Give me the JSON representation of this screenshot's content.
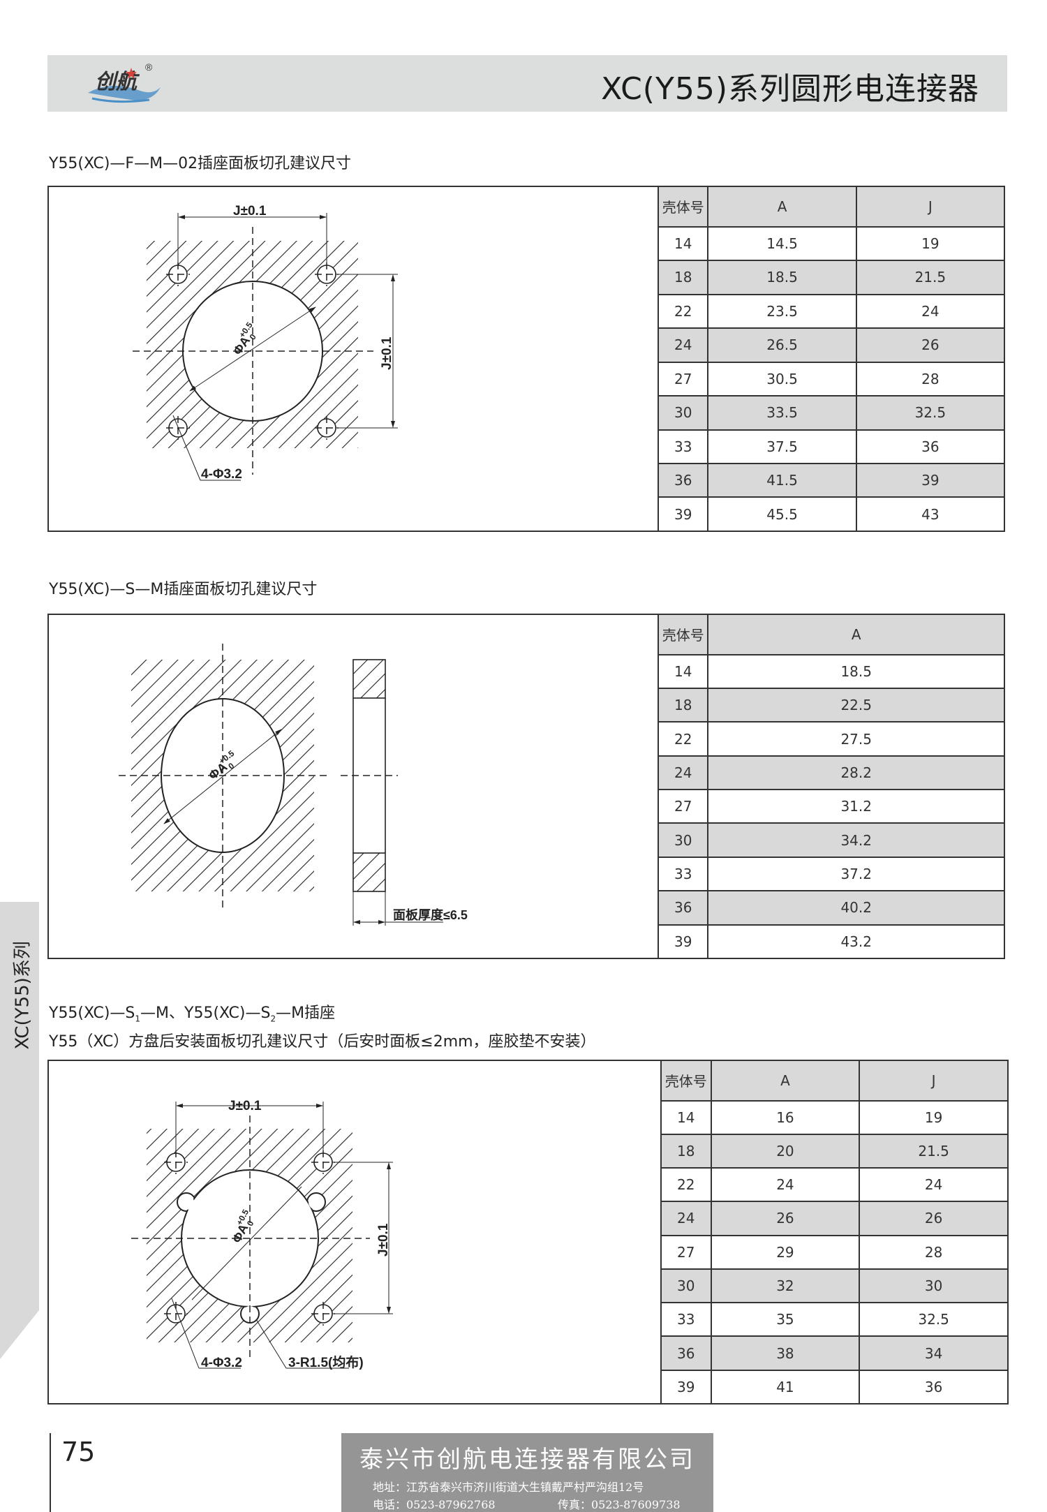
{
  "header": {
    "title": "XC(Y55)系列圆形电连接器",
    "logo_text": "创航",
    "logo_mark": "®"
  },
  "side_tab": {
    "label": "XC(Y55)系列"
  },
  "sections": [
    {
      "title": "Y55(XC)—F—M—02插座面板切孔建议尺寸",
      "drawing": {
        "dim_h": "J±0.1",
        "dim_v": "J±0.1",
        "diameter": "ΦA",
        "tol_upper": "+0.5",
        "tol_lower": "0",
        "holes": "4-Φ3.2"
      },
      "table": {
        "headers": [
          "壳体号",
          "A",
          "J"
        ],
        "rows": [
          [
            "14",
            "14.5",
            "19"
          ],
          [
            "18",
            "18.5",
            "21.5"
          ],
          [
            "22",
            "23.5",
            "24"
          ],
          [
            "24",
            "26.5",
            "26"
          ],
          [
            "27",
            "30.5",
            "28"
          ],
          [
            "30",
            "33.5",
            "32.5"
          ],
          [
            "33",
            "37.5",
            "36"
          ],
          [
            "36",
            "41.5",
            "39"
          ],
          [
            "39",
            "45.5",
            "43"
          ]
        ]
      }
    },
    {
      "title": "Y55(XC)—S—M插座面板切孔建议尺寸",
      "drawing": {
        "diameter": "ΦA",
        "tol_upper": "+0.5",
        "tol_lower": "0",
        "thickness": "面板厚度≤6.5"
      },
      "table": {
        "headers": [
          "壳体号",
          "A"
        ],
        "rows": [
          [
            "14",
            "18.5"
          ],
          [
            "18",
            "22.5"
          ],
          [
            "22",
            "27.5"
          ],
          [
            "24",
            "28.2"
          ],
          [
            "27",
            "31.2"
          ],
          [
            "30",
            "34.2"
          ],
          [
            "33",
            "37.2"
          ],
          [
            "36",
            "40.2"
          ],
          [
            "39",
            "43.2"
          ]
        ]
      }
    },
    {
      "title_line1_a": "Y55(XC)—S",
      "title_line1_sub1": "1",
      "title_line1_b": "—M、Y55(XC)—S",
      "title_line1_sub2": "2",
      "title_line1_c": "—M插座",
      "title_line2": "Y55（XC）方盘后安装面板切孔建议尺寸（后安时面板≤2mm，座胶垫不安装）",
      "drawing": {
        "dim_h": "J±0.1",
        "dim_v": "J±0.1",
        "diameter": "ΦA",
        "tol_upper": "+0.5",
        "tol_lower": "0",
        "holes": "4-Φ3.2",
        "notches": "3-R1.5(均布)"
      },
      "table": {
        "headers": [
          "壳体号",
          "A",
          "J"
        ],
        "rows": [
          [
            "14",
            "16",
            "19"
          ],
          [
            "18",
            "20",
            "21.5"
          ],
          [
            "22",
            "24",
            "24"
          ],
          [
            "24",
            "26",
            "26"
          ],
          [
            "27",
            "29",
            "28"
          ],
          [
            "30",
            "32",
            "30"
          ],
          [
            "33",
            "35",
            "32.5"
          ],
          [
            "36",
            "38",
            "34"
          ],
          [
            "39",
            "41",
            "36"
          ]
        ]
      }
    }
  ],
  "footer": {
    "page_number": "75",
    "company": "泰兴市创航电连接器有限公司",
    "address": "地址：江苏省泰兴市济川街道大生镇戴严村严沟组12号",
    "tel": "电话：0523-87962768",
    "fax": "传真：0523-87609738"
  },
  "colors": {
    "header_bg": "#dcdddd",
    "table_shade": "#d9d9d9",
    "footer_bg": "#959595",
    "logo_blue": "#4a8fc8",
    "logo_star": "#d9443a"
  }
}
